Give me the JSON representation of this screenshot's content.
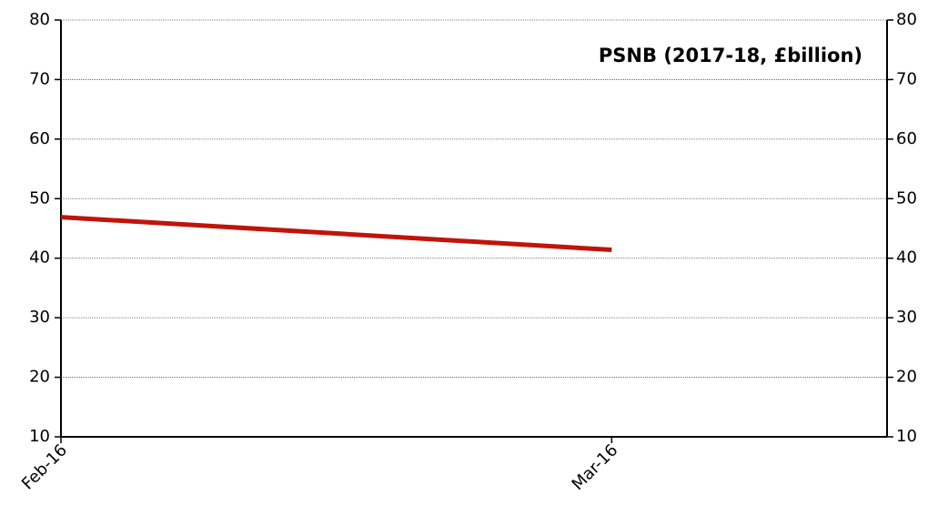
{
  "chart_data": {
    "type": "line",
    "title": "PSNB (2017-18, £billion)",
    "categories": [
      "Feb-16",
      "Mar-16"
    ],
    "series": [
      {
        "name": "PSNB",
        "color": "#c0140a",
        "values": [
          46.9,
          41.4
        ]
      }
    ],
    "ylim": [
      10,
      80
    ],
    "yticks": [
      10,
      20,
      30,
      40,
      50,
      60,
      70,
      80
    ],
    "y2lim": [
      10,
      80
    ],
    "y2ticks": [
      10,
      20,
      30,
      40,
      50,
      60,
      70,
      80
    ],
    "grid": true
  }
}
